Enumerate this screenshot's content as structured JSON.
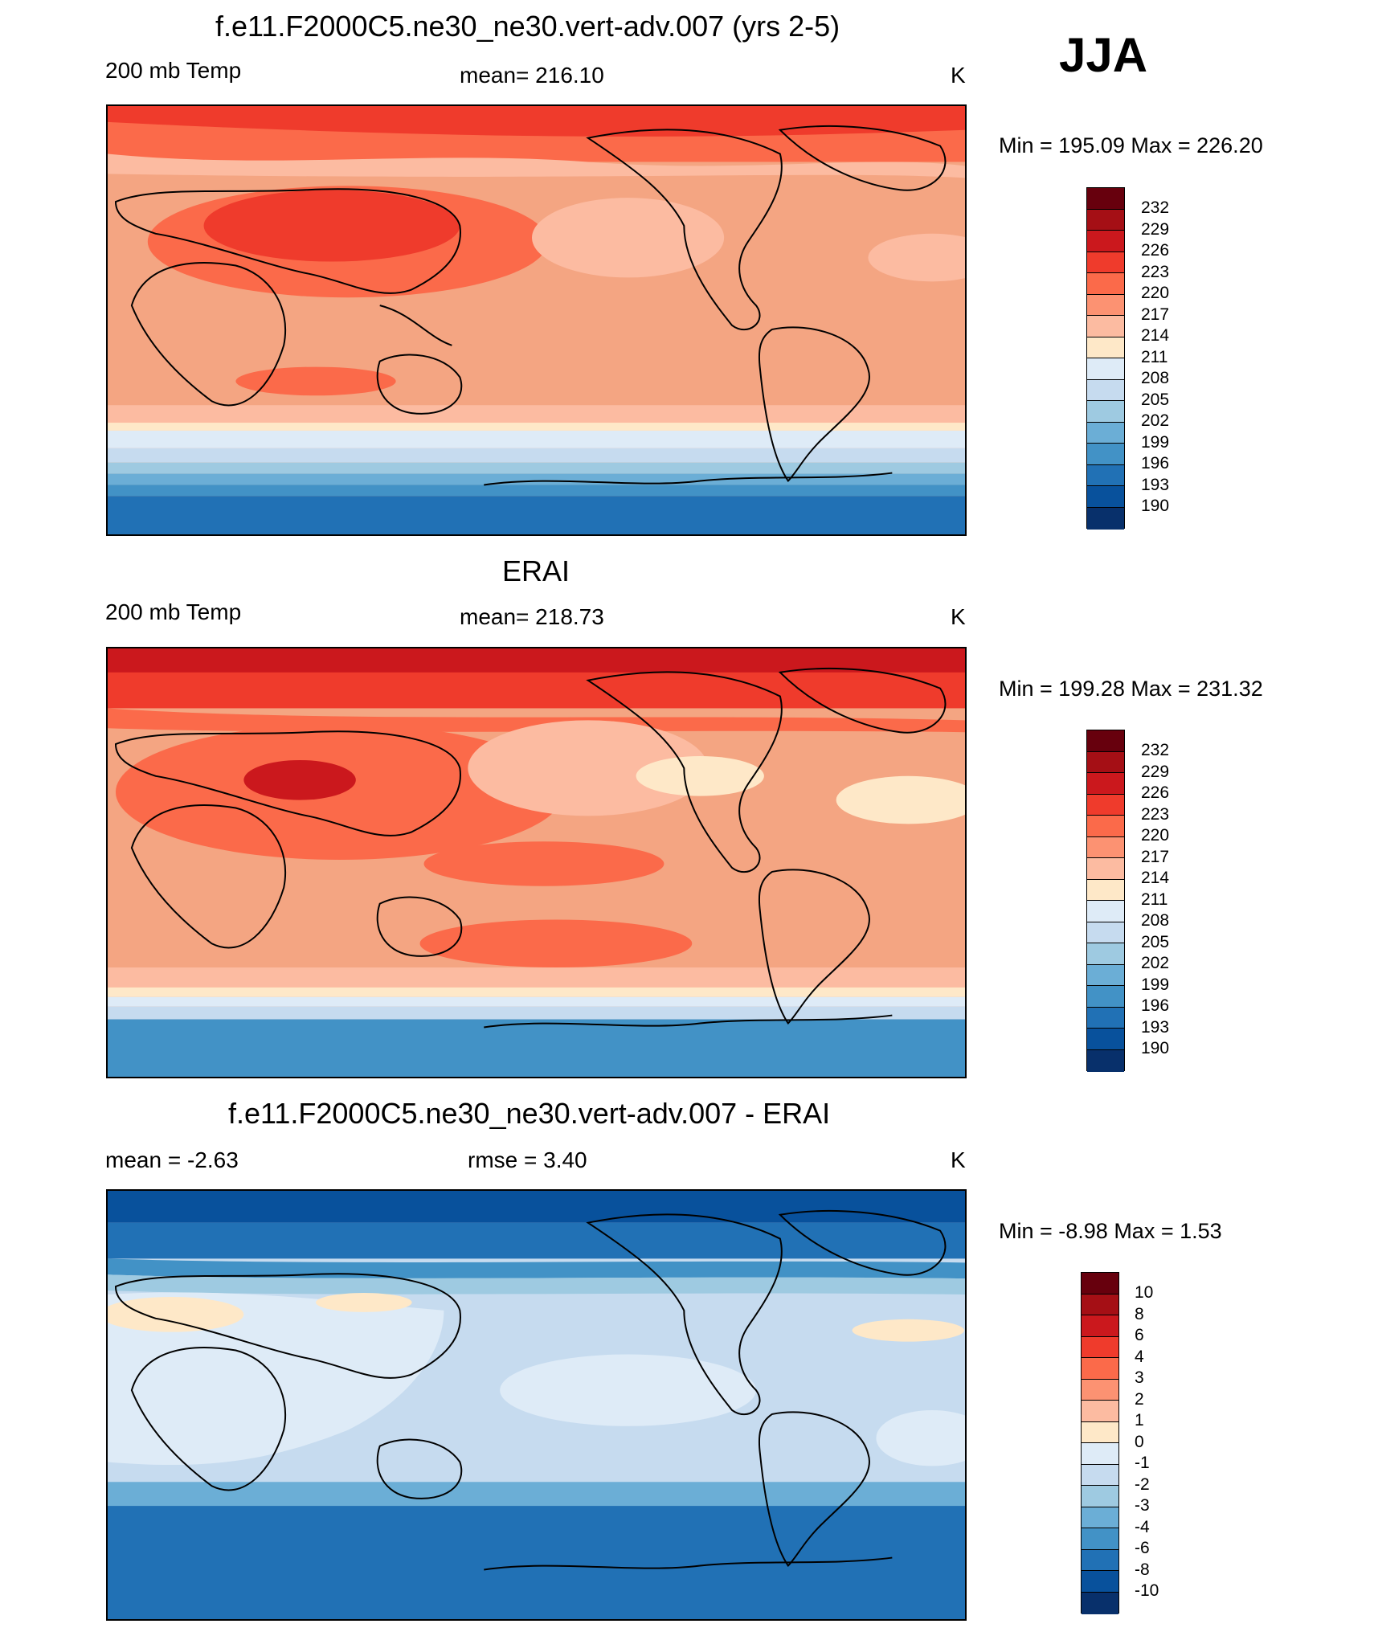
{
  "header": {
    "season": "JJA"
  },
  "panels": [
    {
      "title": "f.e11.F2000C5.ne30_ne30.vert-adv.007 (yrs 2-5)",
      "left_label": "200 mb Temp",
      "center_label": "mean= 216.10",
      "right_label": "K",
      "minmax": "Min = 195.09 Max = 226.20",
      "colorbar_labels": [
        "232",
        "229",
        "226",
        "223",
        "220",
        "217",
        "214",
        "211",
        "208",
        "205",
        "202",
        "199",
        "196",
        "193",
        "190"
      ]
    },
    {
      "title": "ERAI",
      "left_label": "200 mb Temp",
      "center_label": "mean= 218.73",
      "right_label": "K",
      "minmax": "Min = 199.28 Max = 231.32",
      "colorbar_labels": [
        "232",
        "229",
        "226",
        "223",
        "220",
        "217",
        "214",
        "211",
        "208",
        "205",
        "202",
        "199",
        "196",
        "193",
        "190"
      ]
    },
    {
      "title": "f.e11.F2000C5.ne30_ne30.vert-adv.007 - ERAI",
      "left_label": "mean =  -2.63",
      "center_label": "rmse =   3.40",
      "right_label": "K",
      "minmax": "Min =  -8.98 Max =   1.53",
      "colorbar_labels": [
        "10",
        "8",
        "6",
        "4",
        "3",
        "2",
        "1",
        "0",
        "-1",
        "-2",
        "-3",
        "-4",
        "-6",
        "-8",
        "-10"
      ]
    }
  ],
  "colors": {
    "temperature_scale": [
      "#67000d",
      "#a50f15",
      "#cb181d",
      "#ef3b2c",
      "#fb6a4a",
      "#fc9272",
      "#fcbba1",
      "#fee0d2",
      "#fee8c8",
      "#deebf7",
      "#c6dbef",
      "#9ecae1",
      "#6baed6",
      "#4292c6",
      "#2171b5",
      "#08519c",
      "#08306b"
    ],
    "difference_scale": [
      "#67000d",
      "#a50f15",
      "#cb181d",
      "#ef3b2c",
      "#fb6a4a",
      "#fc9272",
      "#fcbba1",
      "#fee8c8",
      "#deebf7",
      "#c6dbef",
      "#9ecae1",
      "#6baed6",
      "#4292c6",
      "#2171b5",
      "#08519c",
      "#08306b"
    ]
  }
}
